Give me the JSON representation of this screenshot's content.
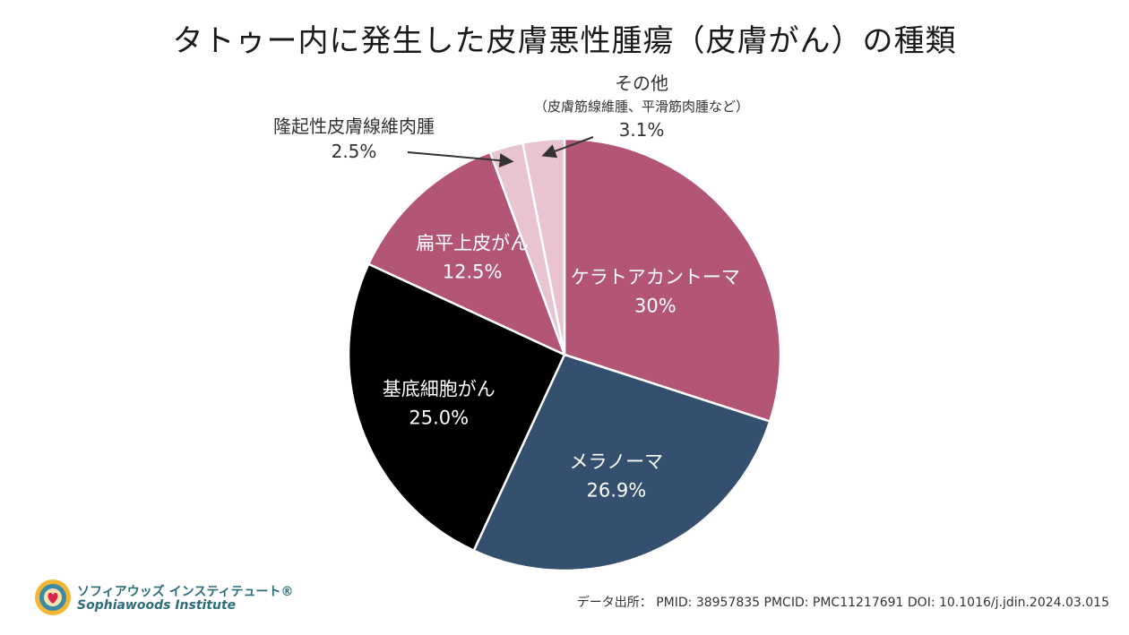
{
  "chart_data": {
    "type": "pie",
    "title": "タトゥー内に発生した皮膚悪性腫瘍（皮膚がん）の種類",
    "slices": [
      {
        "label": "ケラトアカントーマ",
        "value_label": "30%",
        "value": 30.0,
        "color": "#b35575",
        "label_pos": "inside"
      },
      {
        "label": "メラノーマ",
        "value_label": "26.9%",
        "value": 26.9,
        "color": "#354f6e",
        "label_pos": "inside"
      },
      {
        "label": "基底細胞がん",
        "value_label": "25.0%",
        "value": 25.0,
        "color": "#000000",
        "label_pos": "inside"
      },
      {
        "label": "扁平上皮がん",
        "value_label": "12.5%",
        "value": 12.5,
        "color": "#b35575",
        "label_pos": "inside"
      },
      {
        "label": "隆起性皮膚線維肉腫",
        "value_label": "2.5%",
        "value": 2.5,
        "color": "#e8c4d1",
        "label_pos": "outside"
      },
      {
        "label": "その他",
        "sublabel": "（皮膚筋線維腫、平滑筋肉腫など）",
        "value_label": "3.1%",
        "value": 3.1,
        "color": "#e8c4d1",
        "label_pos": "outside"
      }
    ]
  },
  "source": "データ出所： PMID: 38957835 PMCID: PMC11217691 DOI: 10.1016/j.jdin.2024.03.015",
  "logo": {
    "jp": "ソフィアウッズ インスティテュート®",
    "en": "Sophiawoods Institute"
  }
}
